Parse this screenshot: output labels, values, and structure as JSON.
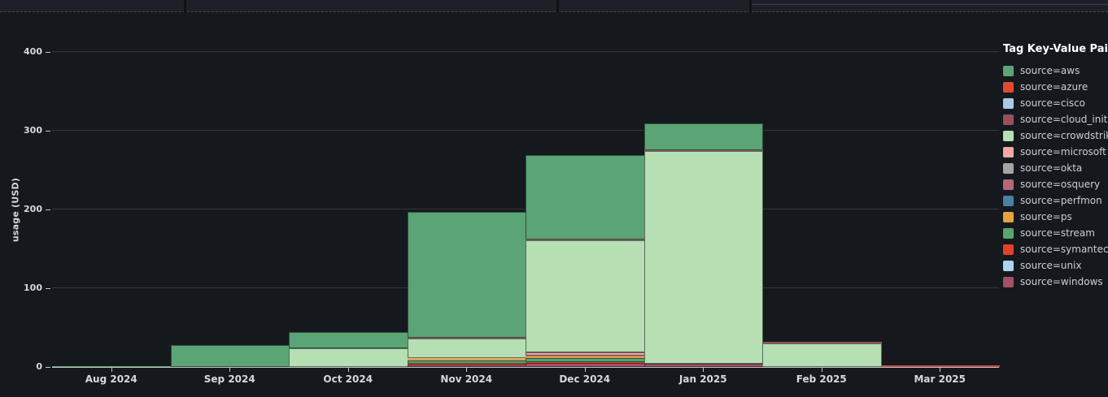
{
  "legend": {
    "title": "Tag Key-Value Pairs"
  },
  "chart_data": {
    "type": "bar",
    "stacked": true,
    "title": "",
    "xlabel": "",
    "ylabel": "usage (USD)",
    "ylim": [
      0,
      400
    ],
    "yticks": [
      0,
      100,
      200,
      300,
      400
    ],
    "grid": true,
    "legend_position": "right",
    "categories": [
      "Aug 2024",
      "Sep 2024",
      "Oct 2024",
      "Nov 2024",
      "Dec 2024",
      "Jan 2025",
      "Feb 2025",
      "Mar 2025"
    ],
    "stack_order_bottom_to_top": [
      "source=windows",
      "source=unix",
      "source=symantec",
      "source=stream",
      "source=ps",
      "source=perfmon",
      "source=osquery",
      "source=okta",
      "source=microsoft",
      "source=crowdstrike",
      "source=cloud_init",
      "source=cisco",
      "source=azure",
      "source=aws"
    ],
    "series": [
      {
        "name": "source=aws",
        "color": "#5ba475",
        "values": [
          1.5,
          28,
          20,
          160,
          107,
          34,
          0,
          0
        ]
      },
      {
        "name": "source=azure",
        "color": "#e04b2e",
        "values": [
          0,
          0,
          0,
          0,
          0,
          0,
          0,
          0
        ]
      },
      {
        "name": "source=cisco",
        "color": "#a9cbe8",
        "values": [
          0,
          0,
          0,
          0,
          0,
          0,
          0,
          0
        ]
      },
      {
        "name": "source=cloud_init",
        "color": "#97505e",
        "values": [
          0,
          0,
          0,
          1,
          1.5,
          1,
          2,
          0
        ]
      },
      {
        "name": "source=crowdstrike",
        "color": "#b6dfb4",
        "values": [
          0,
          0,
          24,
          25,
          142,
          270,
          30,
          0
        ]
      },
      {
        "name": "source=microsoft",
        "color": "#efa8a4",
        "values": [
          0,
          0,
          0,
          1,
          4,
          0,
          0,
          0
        ]
      },
      {
        "name": "source=okta",
        "color": "#a3a6a4",
        "values": [
          0,
          0,
          0,
          0,
          0.5,
          0,
          0,
          0
        ]
      },
      {
        "name": "source=osquery",
        "color": "#b5677a",
        "values": [
          0,
          0,
          0,
          0,
          0.5,
          0,
          0,
          0
        ]
      },
      {
        "name": "source=perfmon",
        "color": "#4a80a3",
        "values": [
          0,
          0,
          0,
          0,
          0.5,
          0,
          0,
          0
        ]
      },
      {
        "name": "source=ps",
        "color": "#e6a33d",
        "values": [
          0,
          0,
          0,
          1.5,
          1.5,
          0,
          0,
          0
        ]
      },
      {
        "name": "source=stream",
        "color": "#57a56f",
        "values": [
          0,
          0,
          0,
          4,
          5,
          0,
          0,
          0
        ]
      },
      {
        "name": "source=symantec",
        "color": "#e0422a",
        "values": [
          0,
          0,
          0,
          1,
          1,
          0,
          0,
          0.5
        ]
      },
      {
        "name": "source=unix",
        "color": "#aad6f0",
        "values": [
          0,
          0,
          0,
          0,
          0.5,
          0,
          0,
          0
        ]
      },
      {
        "name": "source=windows",
        "color": "#a35062",
        "values": [
          0,
          0,
          0,
          3.5,
          5,
          4,
          0,
          1
        ]
      }
    ]
  }
}
